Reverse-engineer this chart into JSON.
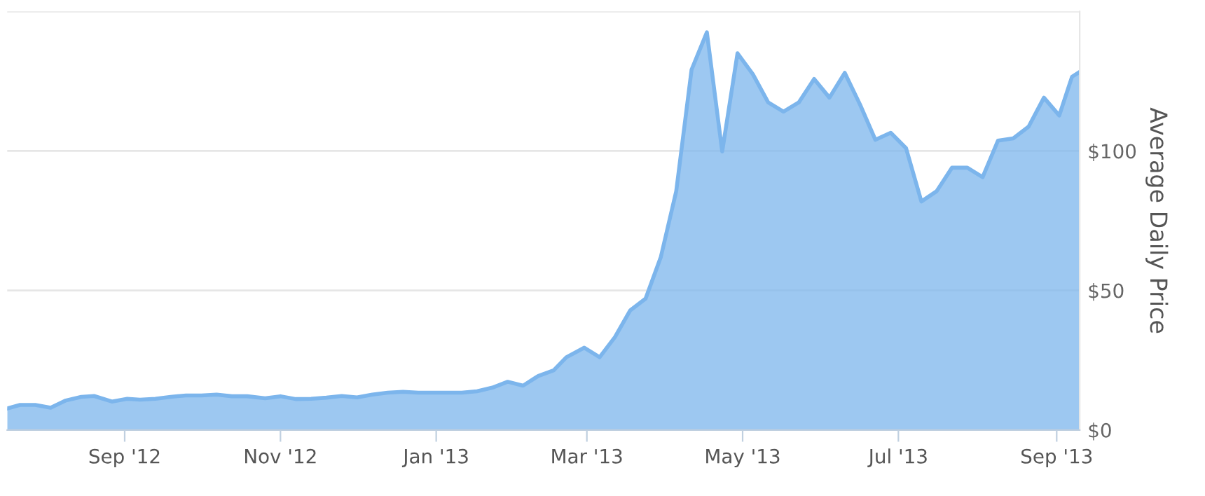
{
  "chart_data": {
    "type": "area",
    "ylabel": "Average Daily Price",
    "x": [
      "2012-07-17",
      "2012-07-22",
      "2012-07-28",
      "2012-08-03",
      "2012-08-09",
      "2012-08-15",
      "2012-08-20",
      "2012-08-27",
      "2012-09-02",
      "2012-09-07",
      "2012-09-13",
      "2012-09-19",
      "2012-09-25",
      "2012-10-01",
      "2012-10-07",
      "2012-10-13",
      "2012-10-19",
      "2012-10-26",
      "2012-11-01",
      "2012-11-07",
      "2012-11-13",
      "2012-11-19",
      "2012-11-25",
      "2012-12-01",
      "2012-12-07",
      "2012-12-13",
      "2012-12-19",
      "2012-12-25",
      "2012-12-31",
      "2013-01-06",
      "2013-01-11",
      "2013-01-17",
      "2013-01-23",
      "2013-01-29",
      "2013-02-04",
      "2013-02-10",
      "2013-02-16",
      "2013-02-21",
      "2013-02-28",
      "2013-03-06",
      "2013-03-12",
      "2013-03-18",
      "2013-03-24",
      "2013-03-30",
      "2013-04-05",
      "2013-04-11",
      "2013-04-17",
      "2013-04-23",
      "2013-04-29",
      "2013-05-05",
      "2013-05-11",
      "2013-05-17",
      "2013-05-23",
      "2013-05-29",
      "2013-06-04",
      "2013-06-10",
      "2013-06-16",
      "2013-06-22",
      "2013-06-28",
      "2013-07-04",
      "2013-07-10",
      "2013-07-16",
      "2013-07-22",
      "2013-07-28",
      "2013-08-03",
      "2013-08-09",
      "2013-08-15",
      "2013-08-21",
      "2013-08-27",
      "2013-09-02",
      "2013-09-07",
      "2013-09-10"
    ],
    "series": [
      {
        "color": "#7cb5ec",
        "values": [
          7.7,
          9.0,
          9.0,
          8.0,
          10.6,
          11.9,
          12.2,
          10.2,
          11.2,
          10.9,
          11.2,
          11.9,
          12.4,
          12.4,
          12.7,
          12.1,
          12.1,
          11.4,
          12.1,
          11.1,
          11.2,
          11.6,
          12.2,
          11.7,
          12.7,
          13.4,
          13.7,
          13.4,
          13.4,
          13.4,
          13.4,
          13.9,
          15.2,
          17.3,
          15.9,
          19.4,
          21.4,
          26.1,
          29.5,
          26.1,
          33.3,
          42.9,
          47.1,
          62.1,
          85.6,
          129.1,
          142.5,
          99.8,
          135.0,
          127.5,
          117.4,
          114.1,
          117.4,
          125.8,
          119.1,
          128.0,
          116.6,
          104.0,
          106.5,
          101.0,
          81.9,
          85.6,
          94.0,
          94.0,
          90.6,
          103.7,
          104.5,
          108.7,
          119.1,
          112.7,
          126.6,
          128.3
        ]
      }
    ],
    "xlim": [
      "2012-07-17",
      "2013-09-10"
    ],
    "xticks": [
      {
        "value": "2012-09-01",
        "label": "Sep '12"
      },
      {
        "value": "2012-11-01",
        "label": "Nov '12"
      },
      {
        "value": "2013-01-01",
        "label": "Jan '13"
      },
      {
        "value": "2013-03-01",
        "label": "Mar '13"
      },
      {
        "value": "2013-05-01",
        "label": "May '13"
      },
      {
        "value": "2013-07-01",
        "label": "Jul '13"
      },
      {
        "value": "2013-09-01",
        "label": "Sep '13"
      }
    ],
    "ylim": [
      0,
      150
    ],
    "yticks": [
      {
        "value": 0,
        "label": "$0"
      },
      {
        "value": 50,
        "label": "$50"
      },
      {
        "value": 100,
        "label": "$100"
      },
      {
        "value": 150,
        "label": null
      }
    ],
    "grid": "y"
  }
}
